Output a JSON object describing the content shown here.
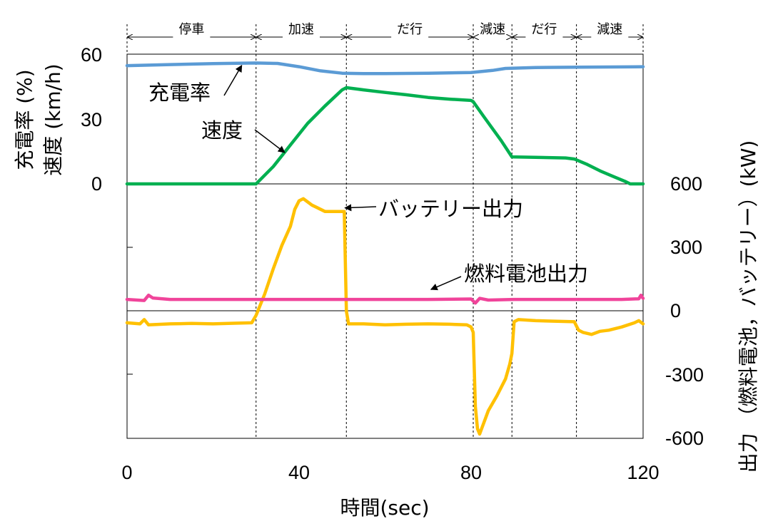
{
  "chart_data": {
    "type": "line",
    "xlabel": "時間(sec)",
    "x_ticks": [
      "0",
      "40",
      "80",
      "120"
    ],
    "xlim": [
      0,
      120
    ],
    "upper_panel": {
      "ylabel_line1": "充電率 (%)",
      "ylabel_line2": "速度 (km/h)",
      "ylim": [
        0,
        60
      ],
      "y_ticks": [
        "0",
        "30",
        "60"
      ],
      "series": [
        {
          "name": "充電率",
          "color": "#5B9BD5",
          "points": [
            [
              0,
              54.7
            ],
            [
              10,
              55.2
            ],
            [
              20,
              55.6
            ],
            [
              30,
              55.9
            ],
            [
              35,
              55.7
            ],
            [
              40,
              54.2
            ],
            [
              45,
              52.3
            ],
            [
              50,
              51.2
            ],
            [
              55,
              51.0
            ],
            [
              60,
              51.0
            ],
            [
              70,
              51.2
            ],
            [
              80,
              51.5
            ],
            [
              85,
              52.5
            ],
            [
              88,
              53.4
            ],
            [
              95,
              53.8
            ],
            [
              105,
              54.0
            ],
            [
              115,
              54.1
            ],
            [
              120,
              54.2
            ]
          ]
        },
        {
          "name": "速度",
          "color": "#00B050",
          "points": [
            [
              0,
              0
            ],
            [
              30,
              0
            ],
            [
              34,
              8
            ],
            [
              38,
              18
            ],
            [
              42,
              28
            ],
            [
              46,
              36
            ],
            [
              50,
              43.5
            ],
            [
              51,
              44.5
            ],
            [
              55,
              43.5
            ],
            [
              60,
              42.3
            ],
            [
              65,
              41.2
            ],
            [
              70,
              40.0
            ],
            [
              75,
              39.2
            ],
            [
              80,
              38.6
            ],
            [
              80.5,
              38.0
            ],
            [
              83,
              31
            ],
            [
              87,
              20
            ],
            [
              89.5,
              12.5
            ],
            [
              95,
              12.3
            ],
            [
              102,
              12.0
            ],
            [
              104,
              11.5
            ],
            [
              107,
              9
            ],
            [
              110,
              6
            ],
            [
              113,
              3.5
            ],
            [
              116,
              1
            ],
            [
              117,
              0
            ],
            [
              120,
              0
            ]
          ]
        }
      ]
    },
    "lower_panel": {
      "ylabel": "出力 （燃料電池，バッテリー）(kW)",
      "ylim": [
        -600,
        600
      ],
      "y_ticks": [
        "600",
        "300",
        "0",
        "-300",
        "-600"
      ],
      "series": [
        {
          "name": "バッテリー出力",
          "color": "#FFC000",
          "points": [
            [
              0,
              -55
            ],
            [
              3,
              -60
            ],
            [
              4,
              -40
            ],
            [
              5,
              -65
            ],
            [
              10,
              -60
            ],
            [
              15,
              -58
            ],
            [
              20,
              -60
            ],
            [
              25,
              -57
            ],
            [
              29,
              -55
            ],
            [
              30,
              -20
            ],
            [
              32,
              80
            ],
            [
              34,
              200
            ],
            [
              36,
              310
            ],
            [
              38,
              400
            ],
            [
              39,
              480
            ],
            [
              40,
              520
            ],
            [
              41,
              530
            ],
            [
              43,
              500
            ],
            [
              44,
              490
            ],
            [
              46,
              470
            ],
            [
              48,
              470
            ],
            [
              50,
              470
            ],
            [
              50.5,
              470
            ],
            [
              51,
              0
            ],
            [
              51.5,
              -60
            ],
            [
              55,
              -60
            ],
            [
              60,
              -65
            ],
            [
              65,
              -62
            ],
            [
              70,
              -60
            ],
            [
              75,
              -62
            ],
            [
              79,
              -65
            ],
            [
              80,
              -75
            ],
            [
              80.5,
              -100
            ],
            [
              81,
              -450
            ],
            [
              81.5,
              -555
            ],
            [
              82,
              -580
            ],
            [
              84,
              -470
            ],
            [
              86,
              -400
            ],
            [
              88,
              -320
            ],
            [
              89,
              -250
            ],
            [
              89.5,
              -200
            ],
            [
              90,
              -50
            ],
            [
              91,
              -40
            ],
            [
              95,
              -45
            ],
            [
              100,
              -48
            ],
            [
              104,
              -50
            ],
            [
              105,
              -90
            ],
            [
              106,
              -100
            ],
            [
              108,
              -110
            ],
            [
              110,
              -95
            ],
            [
              112,
              -90
            ],
            [
              115,
              -75
            ],
            [
              118,
              -55
            ],
            [
              119,
              -45
            ],
            [
              120,
              -60
            ]
          ]
        },
        {
          "name": "燃料電池出力",
          "color": "#F0449A",
          "points": [
            [
              0,
              55
            ],
            [
              4,
              50
            ],
            [
              5,
              75
            ],
            [
              6,
              62
            ],
            [
              10,
              55
            ],
            [
              20,
              55
            ],
            [
              30,
              55
            ],
            [
              40,
              55
            ],
            [
              50,
              55
            ],
            [
              60,
              55
            ],
            [
              70,
              55
            ],
            [
              80,
              57
            ],
            [
              81,
              38
            ],
            [
              82,
              60
            ],
            [
              84,
              52
            ],
            [
              90,
              55
            ],
            [
              100,
              55
            ],
            [
              105,
              55
            ],
            [
              115,
              55
            ],
            [
              119,
              58
            ],
            [
              119.5,
              75
            ],
            [
              120,
              60
            ]
          ]
        }
      ]
    },
    "phases": [
      {
        "label": "停車",
        "start": 0,
        "end": 30
      },
      {
        "label": "加速",
        "start": 30,
        "end": 51
      },
      {
        "label": "だ行",
        "start": 51,
        "end": 80.5
      },
      {
        "label": "減速",
        "start": 80.5,
        "end": 89.5
      },
      {
        "label": "だ行",
        "start": 89.5,
        "end": 104.5
      },
      {
        "label": "減速",
        "start": 104.5,
        "end": 120
      }
    ],
    "annotations": [
      {
        "text": "充電率",
        "series": "充電率",
        "x": 27
      },
      {
        "text": "速度",
        "series": "速度",
        "x": 37
      },
      {
        "text": "バッテリー出力",
        "series": "バッテリー出力",
        "x": 50
      },
      {
        "text": "燃料電池出力",
        "series": "燃料電池出力",
        "x": 70
      }
    ],
    "grid": false,
    "legend": "none (inline annotations)"
  }
}
